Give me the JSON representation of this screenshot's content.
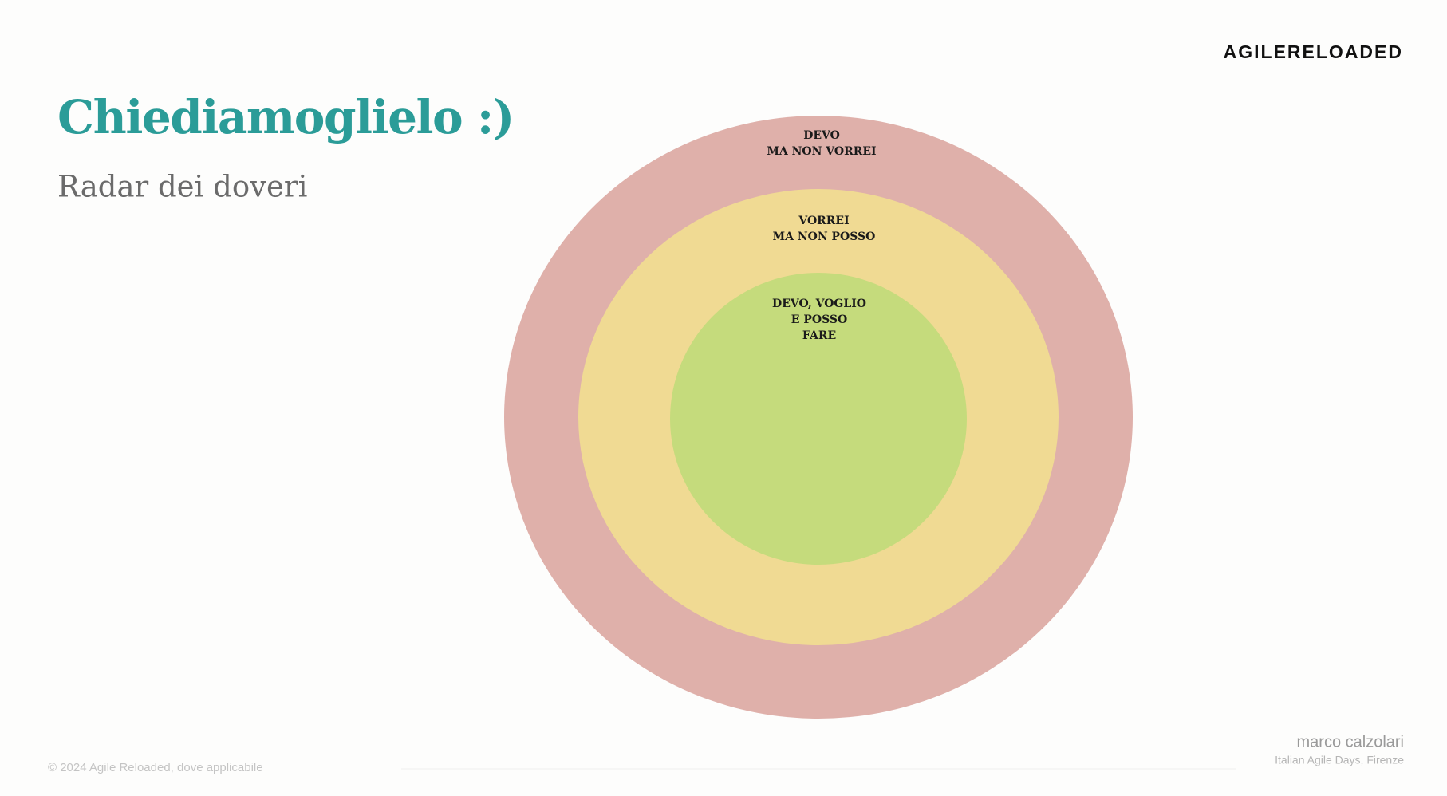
{
  "header": {
    "logo": "AGILERELOADED",
    "title": "Chiediamoglielo :)",
    "subtitle": "Radar dei doveri"
  },
  "radar": {
    "rings": [
      {
        "lines": [
          "DEVO",
          "MA NON VORREI"
        ]
      },
      {
        "lines": [
          "VORREI",
          "MA NON POSSO"
        ]
      },
      {
        "lines": [
          "DEVO, VOGLIO",
          "E POSSO",
          "FARE"
        ]
      }
    ]
  },
  "footer": {
    "copyright": "© 2024 Agile Reloaded, dove applicabile",
    "author": "marco calzolari",
    "event": "Italian Agile Days, Firenze"
  }
}
